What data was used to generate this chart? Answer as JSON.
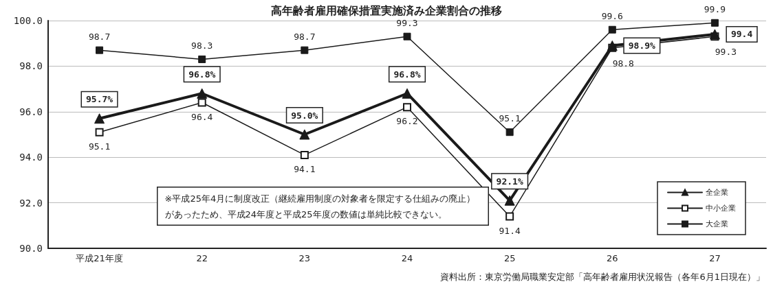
{
  "chart_data": {
    "type": "line",
    "title": "高年齢者雇用確保措置実施済み企業割合の推移",
    "categories": [
      "平成21年度",
      "22",
      "23",
      "24",
      "25",
      "26",
      "27"
    ],
    "series": [
      {
        "name": "全企業",
        "color": "#1a1a1a",
        "marker": "triangle",
        "values": [
          95.7,
          96.8,
          95.0,
          96.8,
          92.1,
          98.9,
          99.4
        ],
        "value_labels": [
          "95.7%",
          "96.8%",
          "95.0%",
          "96.8%",
          "92.1%",
          "98.9%",
          "99.4"
        ]
      },
      {
        "name": "中小企業",
        "color": "#1a1a1a",
        "marker": "square",
        "values": [
          95.1,
          96.4,
          94.1,
          96.2,
          91.4,
          98.8,
          99.3
        ],
        "value_labels": [
          "95.1",
          "96.4",
          "94.1",
          "96.2",
          "91.4",
          "98.8",
          "99.3"
        ]
      },
      {
        "name": "大企業",
        "color": "#1a1a1a",
        "marker": "square",
        "values": [
          98.7,
          98.3,
          98.7,
          99.3,
          95.1,
          99.6,
          99.9
        ],
        "value_labels": [
          "98.7",
          "98.3",
          "98.7",
          "99.3",
          "95.1",
          "99.6",
          "99.9"
        ]
      }
    ],
    "ylim": [
      90,
      100
    ],
    "yticks": [
      {
        "value": 90,
        "label": "90.0"
      },
      {
        "value": 92,
        "label": "92.0"
      },
      {
        "value": 94,
        "label": "94.0"
      },
      {
        "value": 96,
        "label": "96.0"
      },
      {
        "value": 98,
        "label": "98.0"
      },
      {
        "value": 100,
        "label": "100.0"
      }
    ],
    "grid": "y",
    "legend": "bottom right",
    "annotations": [
      "※平成25年4月に制度改正（継続雇用制度の対象者を限定する仕組みの廃止）があったため、平成24年度と平成25年度の数値は単純比較できない。",
      "資料出所：東京労働局職業安定部「高年齢者雇用状況報告（各年6月1日現在）」"
    ]
  }
}
